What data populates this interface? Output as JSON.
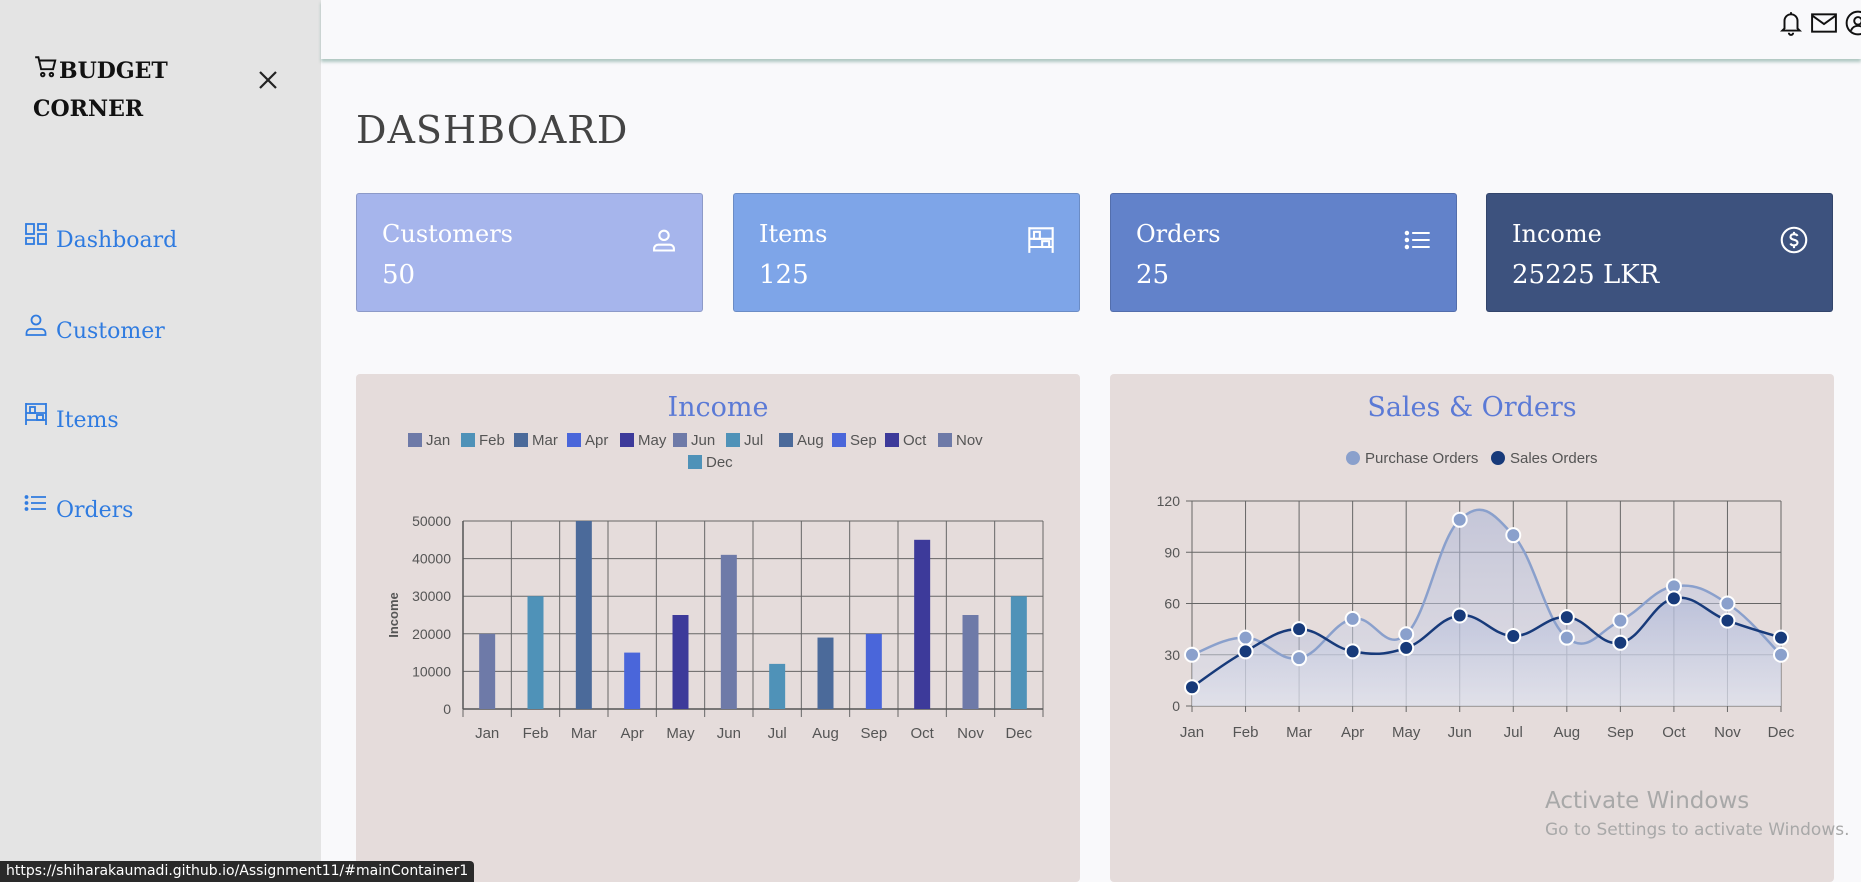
{
  "sidebar": {
    "brand_line1": "BUDGET",
    "brand_line2": "CORNER",
    "items": [
      {
        "label": "Dashboard",
        "icon": "grid-icon"
      },
      {
        "label": "Customer",
        "icon": "user-icon"
      },
      {
        "label": "Items",
        "icon": "shelf-icon"
      },
      {
        "label": "Orders",
        "icon": "list-icon"
      }
    ]
  },
  "header": {
    "icons": [
      "bell-icon",
      "mail-icon",
      "user-circle-icon"
    ]
  },
  "main": {
    "title": "DASHBOARD",
    "cards": [
      {
        "label": "Customers",
        "value": "50",
        "color": "#a6b5ec",
        "icon": "user-icon"
      },
      {
        "label": "Items",
        "value": "125",
        "color": "#7ea5e8",
        "icon": "shelf-icon"
      },
      {
        "label": "Orders",
        "value": "25",
        "color": "#6282ca",
        "icon": "list-icon"
      },
      {
        "label": "Income",
        "value": "25225 LKR",
        "color": "#3d527e",
        "icon": "dollar-icon"
      }
    ]
  },
  "chart_data": [
    {
      "type": "bar",
      "title": "Income",
      "ylabel": "Income",
      "ylim": [
        0,
        50000
      ],
      "yticks": [
        "0",
        "10000",
        "20000",
        "30000",
        "40000",
        "50000"
      ],
      "categories": [
        "Jan",
        "Feb",
        "Mar",
        "Apr",
        "May",
        "Jun",
        "Jul",
        "Aug",
        "Sep",
        "Oct",
        "Nov",
        "Dec"
      ],
      "values": [
        20000,
        30000,
        50000,
        15000,
        25000,
        41000,
        12000,
        19000,
        20000,
        45000,
        25000,
        30000
      ],
      "colors": [
        "#6e7aa8",
        "#4f92b8",
        "#4b6a9a",
        "#4a66da",
        "#3d3a9a",
        "#6e7aa8",
        "#4f92b8",
        "#4b6a9a",
        "#4a66da",
        "#3d3a9a",
        "#6e7aa8",
        "#4f92b8"
      ],
      "legend": [
        "Jan",
        "Feb",
        "Mar",
        "Apr",
        "May",
        "Jun",
        "Jul",
        "Aug",
        "Sep",
        "Oct",
        "Nov",
        "Dec"
      ],
      "legend_position": "top",
      "grid": true
    },
    {
      "type": "line",
      "title": "Sales & Orders",
      "ylim": [
        0,
        120
      ],
      "yticks": [
        "0",
        "30",
        "60",
        "90",
        "120"
      ],
      "categories": [
        "Jan",
        "Feb",
        "Mar",
        "Apr",
        "May",
        "Jun",
        "Jul",
        "Aug",
        "Sep",
        "Oct",
        "Nov",
        "Dec"
      ],
      "series": [
        {
          "name": "Purchase Orders",
          "values": [
            30,
            40,
            28,
            51,
            42,
            109,
            100,
            40,
            50,
            70,
            60,
            30
          ],
          "color": "#8aa0cc"
        },
        {
          "name": "Sales Orders",
          "values": [
            11,
            32,
            45,
            32,
            34,
            53,
            41,
            52,
            37,
            63,
            50,
            40
          ],
          "color": "#173a7a"
        }
      ],
      "legend_position": "top",
      "grid": true
    }
  ],
  "status_bar": {
    "url": "https://shiharakaumadi.github.io/Assignment11/#mainContainer1"
  },
  "watermark": {
    "line1": "Activate Windows",
    "line2": "Go to Settings to activate Windows."
  }
}
